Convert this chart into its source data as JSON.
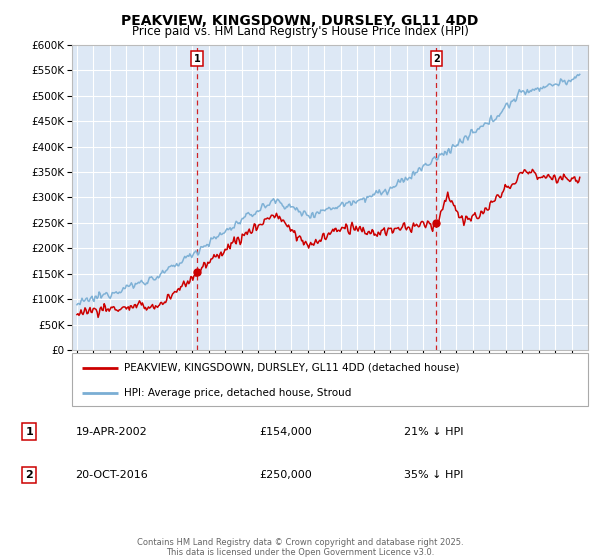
{
  "title": "PEAKVIEW, KINGSDOWN, DURSLEY, GL11 4DD",
  "subtitle": "Price paid vs. HM Land Registry's House Price Index (HPI)",
  "legend_line1": "PEAKVIEW, KINGSDOWN, DURSLEY, GL11 4DD (detached house)",
  "legend_line2": "HPI: Average price, detached house, Stroud",
  "sale1_date": "19-APR-2002",
  "sale1_price": "£154,000",
  "sale1_hpi": "21% ↓ HPI",
  "sale2_date": "20-OCT-2016",
  "sale2_price": "£250,000",
  "sale2_hpi": "35% ↓ HPI",
  "footer": "Contains HM Land Registry data © Crown copyright and database right 2025.\nThis data is licensed under the Open Government Licence v3.0.",
  "red_color": "#cc0000",
  "blue_color": "#7aaed4",
  "plot_bg_color": "#dde8f5",
  "grid_color": "#ffffff",
  "vline_color": "#cc0000",
  "ylim": [
    0,
    600000
  ],
  "yticks": [
    0,
    50000,
    100000,
    150000,
    200000,
    250000,
    300000,
    350000,
    400000,
    450000,
    500000,
    550000,
    600000
  ],
  "sale1_year": 2002.3,
  "sale1_price_val": 154000,
  "sale2_year": 2016.8,
  "sale2_price_val": 250000,
  "xstart": 1995,
  "xend": 2025
}
